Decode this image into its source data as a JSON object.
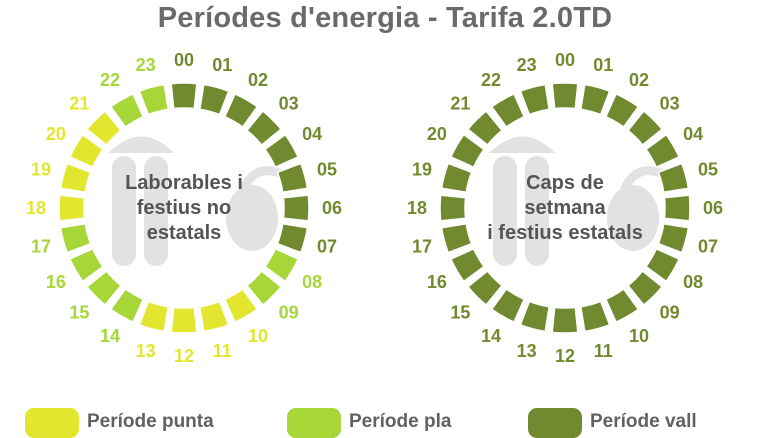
{
  "title": "Períodes d'energia - Tarifa 2.0TD",
  "colors": {
    "punta": "#e3e62f",
    "pla": "#a6d637",
    "vall": "#728a2f",
    "plug_icon": "#e2e2e2",
    "center_text": "#555555"
  },
  "legend": [
    {
      "period": "punta",
      "label": "Període punta"
    },
    {
      "period": "pla",
      "label": "Període pla"
    },
    {
      "period": "vall",
      "label": "Període vall"
    }
  ],
  "hours": [
    "00",
    "01",
    "02",
    "03",
    "04",
    "05",
    "06",
    "07",
    "08",
    "09",
    "10",
    "11",
    "12",
    "13",
    "14",
    "15",
    "16",
    "17",
    "18",
    "19",
    "20",
    "21",
    "22",
    "23"
  ],
  "clocks": [
    {
      "id": "laborables",
      "center_lines": [
        "Laborables i",
        "festius no",
        "estatals"
      ],
      "periods": [
        "vall",
        "vall",
        "vall",
        "vall",
        "vall",
        "vall",
        "vall",
        "vall",
        "pla",
        "pla",
        "punta",
        "punta",
        "punta",
        "punta",
        "pla",
        "pla",
        "pla",
        "pla",
        "punta",
        "punta",
        "punta",
        "punta",
        "pla",
        "pla"
      ]
    },
    {
      "id": "caps-de-setmana",
      "center_lines": [
        "Caps de",
        "setmana",
        "i festius estatals"
      ],
      "periods": [
        "vall",
        "vall",
        "vall",
        "vall",
        "vall",
        "vall",
        "vall",
        "vall",
        "vall",
        "vall",
        "vall",
        "vall",
        "vall",
        "vall",
        "vall",
        "vall",
        "vall",
        "vall",
        "vall",
        "vall",
        "vall",
        "vall",
        "vall",
        "vall"
      ]
    }
  ]
}
